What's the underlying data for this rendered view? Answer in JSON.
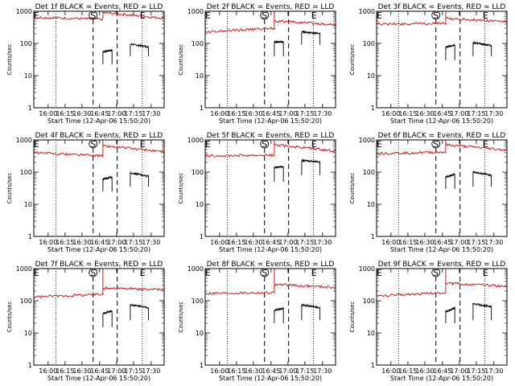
{
  "chart_data": [
    {
      "type": "line",
      "title": "Det 1f BLACK = Events, RED = LLD",
      "xlabel": "Start Time (12-Apr-06 15:50:20)",
      "ylabel": "Counts/sec",
      "yscale": "log",
      "ylim": [
        1,
        1000
      ],
      "y_ticks": [
        "1",
        "10",
        "100",
        "1000"
      ],
      "x_ticks": [
        "16:00",
        "16:15",
        "16:30",
        "16:45",
        "17:00",
        "17:15",
        "17:30"
      ],
      "markers": [
        "E",
        "S",
        "E"
      ],
      "grid": false,
      "series": [
        {
          "color": "#000000",
          "segments": [
            {
              "start": 60,
              "end": 53,
              "level_start": 55,
              "level_end": 62,
              "drop": 22
            },
            {
              "start": 74,
              "end": 88,
              "level_start": 95,
              "level_end": 78,
              "drop": 40
            }
          ]
        },
        {
          "color": "#d00000",
          "segments": [
            {
              "start": 0,
              "end": 53,
              "level_start": 650,
              "level_end": 560,
              "spike": 1000
            },
            {
              "start": 53,
              "end": 100,
              "level_start": 900,
              "level_end": 600
            }
          ]
        }
      ]
    },
    {
      "type": "line",
      "title": "Det 2f BLACK = Events, RED = LLD",
      "xlabel": "Start Time (12-Apr-06 15:50:20)",
      "ylabel": "Counts/sec",
      "yscale": "log",
      "ylim": [
        1,
        1000
      ],
      "y_ticks": [
        "1",
        "10",
        "100",
        "1000"
      ],
      "x_ticks": [
        "16:00",
        "16:15",
        "16:30",
        "16:45",
        "17:00",
        "17:15",
        "17:30"
      ],
      "markers": [
        "E",
        "S",
        "E"
      ],
      "grid": false,
      "series": [
        {
          "color": "#000000",
          "segments": [
            {
              "start": 60,
              "end": 53,
              "level_start": 110,
              "level_end": 115,
              "drop": 40
            },
            {
              "start": 74,
              "end": 88,
              "level_start": 230,
              "level_end": 200,
              "drop": 90
            }
          ]
        },
        {
          "color": "#d00000",
          "segments": [
            {
              "start": 0,
              "end": 53,
              "level_start": 220,
              "level_end": 300,
              "spike": 1000
            },
            {
              "start": 53,
              "end": 100,
              "level_start": 500,
              "level_end": 380
            }
          ]
        }
      ]
    },
    {
      "type": "line",
      "title": "Det 3f BLACK = Events, RED = LLD",
      "xlabel": "Start Time (12-Apr-06 15:50:20)",
      "ylabel": "Counts/sec",
      "yscale": "log",
      "ylim": [
        1,
        1000
      ],
      "y_ticks": [
        "1",
        "10",
        "100",
        "1000"
      ],
      "x_ticks": [
        "16:00",
        "16:15",
        "16:30",
        "16:45",
        "17:00",
        "17:15",
        "17:30"
      ],
      "markers": [
        "E",
        "S",
        "E"
      ],
      "grid": false,
      "series": [
        {
          "color": "#000000",
          "segments": [
            {
              "start": 60,
              "end": 53,
              "level_start": 75,
              "level_end": 90,
              "drop": 30
            },
            {
              "start": 74,
              "end": 88,
              "level_start": 105,
              "level_end": 85,
              "drop": 40
            }
          ]
        },
        {
          "color": "#d00000",
          "segments": [
            {
              "start": 0,
              "end": 53,
              "level_start": 400,
              "level_end": 420,
              "spike": 1000
            },
            {
              "start": 53,
              "end": 100,
              "level_start": 600,
              "level_end": 480
            }
          ]
        }
      ]
    },
    {
      "type": "line",
      "title": "Det 4f BLACK = Events, RED = LLD",
      "xlabel": "Start Time (12-Apr-06 15:50:20)",
      "ylabel": "Counts/sec",
      "yscale": "log",
      "ylim": [
        1,
        1000
      ],
      "y_ticks": [
        "1",
        "10",
        "100",
        "1000"
      ],
      "x_ticks": [
        "16:00",
        "16:15",
        "16:30",
        "16:45",
        "17:00",
        "17:15",
        "17:30"
      ],
      "markers": [
        "E",
        "S",
        "E"
      ],
      "grid": false,
      "series": [
        {
          "color": "#000000",
          "segments": [
            {
              "start": 60,
              "end": 53,
              "level_start": 60,
              "level_end": 70,
              "drop": 25
            },
            {
              "start": 74,
              "end": 88,
              "level_start": 95,
              "level_end": 75,
              "drop": 35
            }
          ]
        },
        {
          "color": "#d00000",
          "segments": [
            {
              "start": 0,
              "end": 53,
              "level_start": 400,
              "level_end": 320,
              "spike": 1000
            },
            {
              "start": 53,
              "end": 100,
              "level_start": 650,
              "level_end": 420
            }
          ]
        }
      ]
    },
    {
      "type": "line",
      "title": "Det 5f BLACK = Events, RED = LLD",
      "xlabel": "Start Time (12-Apr-06 15:50:20)",
      "ylabel": "Counts/sec",
      "yscale": "log",
      "ylim": [
        1,
        1000
      ],
      "y_ticks": [
        "1",
        "10",
        "100",
        "1000"
      ],
      "x_ticks": [
        "16:00",
        "16:15",
        "16:30",
        "16:45",
        "17:00",
        "17:15",
        "17:30"
      ],
      "markers": [
        "E",
        "S",
        "E"
      ],
      "grid": false,
      "series": [
        {
          "color": "#000000",
          "segments": [
            {
              "start": 60,
              "end": 53,
              "level_start": 140,
              "level_end": 150,
              "drop": 50
            },
            {
              "start": 74,
              "end": 88,
              "level_start": 230,
              "level_end": 210,
              "drop": 80
            }
          ]
        },
        {
          "color": "#d00000",
          "segments": [
            {
              "start": 0,
              "end": 53,
              "level_start": 320,
              "level_end": 340,
              "spike": 1000
            },
            {
              "start": 53,
              "end": 100,
              "level_start": 700,
              "level_end": 450
            }
          ]
        }
      ]
    },
    {
      "type": "line",
      "title": "Det 6f BLACK = Events, RED = LLD",
      "xlabel": "Start Time (12-Apr-06 15:50:20)",
      "ylabel": "Counts/sec",
      "yscale": "log",
      "ylim": [
        1,
        1000
      ],
      "y_ticks": [
        "1",
        "10",
        "100",
        "1000"
      ],
      "x_ticks": [
        "16:00",
        "16:15",
        "16:30",
        "16:45",
        "17:00",
        "17:15",
        "17:30"
      ],
      "markers": [
        "E",
        "S",
        "E"
      ],
      "grid": false,
      "series": [
        {
          "color": "#000000",
          "segments": [
            {
              "start": 60,
              "end": 53,
              "level_start": 70,
              "level_end": 85,
              "drop": 30
            },
            {
              "start": 74,
              "end": 88,
              "level_start": 100,
              "level_end": 80,
              "drop": 35
            }
          ]
        },
        {
          "color": "#d00000",
          "segments": [
            {
              "start": 0,
              "end": 53,
              "level_start": 380,
              "level_end": 420,
              "spike": 1000
            },
            {
              "start": 53,
              "end": 100,
              "level_start": 700,
              "level_end": 480
            }
          ]
        }
      ]
    },
    {
      "type": "line",
      "title": "Det 7f BLACK = Events, RED = LLD",
      "xlabel": "Start Time (12-Apr-06 15:50:20)",
      "ylabel": "Counts/sec",
      "yscale": "log",
      "ylim": [
        1,
        1000
      ],
      "y_ticks": [
        "1",
        "10",
        "100",
        "1000"
      ],
      "x_ticks": [
        "16:00",
        "16:15",
        "16:30",
        "16:45",
        "17:00",
        "17:15",
        "17:30"
      ],
      "markers": [
        "E",
        "S",
        "E"
      ],
      "grid": false,
      "series": [
        {
          "color": "#000000",
          "segments": [
            {
              "start": 60,
              "end": 53,
              "level_start": 40,
              "level_end": 48,
              "drop": 15
            },
            {
              "start": 74,
              "end": 88,
              "level_start": 75,
              "level_end": 60,
              "drop": 25
            }
          ]
        },
        {
          "color": "#d00000",
          "segments": [
            {
              "start": 0,
              "end": 53,
              "level_start": 130,
              "level_end": 160,
              "spike": 1000
            },
            {
              "start": 53,
              "end": 100,
              "level_start": 250,
              "level_end": 220
            }
          ]
        }
      ]
    },
    {
      "type": "line",
      "title": "Det 8f BLACK = Events, RED = LLD",
      "xlabel": "Start Time (12-Apr-06 15:50:20)",
      "ylabel": "Counts/sec",
      "yscale": "log",
      "ylim": [
        1,
        1000
      ],
      "y_ticks": [
        "1",
        "10",
        "100",
        "1000"
      ],
      "x_ticks": [
        "16:00",
        "16:15",
        "16:30",
        "16:45",
        "17:00",
        "17:15",
        "17:30"
      ],
      "markers": [
        "E",
        "S",
        "E"
      ],
      "grid": false,
      "series": [
        {
          "color": "#000000",
          "segments": [
            {
              "start": 60,
              "end": 53,
              "level_start": 50,
              "level_end": 58,
              "drop": 20
            },
            {
              "start": 74,
              "end": 88,
              "level_start": 75,
              "level_end": 60,
              "drop": 25
            }
          ]
        },
        {
          "color": "#d00000",
          "segments": [
            {
              "start": 0,
              "end": 53,
              "level_start": 170,
              "level_end": 180,
              "spike": 1000
            },
            {
              "start": 53,
              "end": 100,
              "level_start": 320,
              "level_end": 260
            }
          ]
        }
      ]
    },
    {
      "type": "line",
      "title": "Det 9f BLACK = Events, RED = LLD",
      "xlabel": "Start Time (12-Apr-06 15:50:20)",
      "ylabel": "Counts/sec",
      "yscale": "log",
      "ylim": [
        1,
        1000
      ],
      "y_ticks": [
        "1",
        "10",
        "100",
        "1000"
      ],
      "x_ticks": [
        "16:00",
        "16:15",
        "16:30",
        "16:45",
        "17:00",
        "17:15",
        "17:30"
      ],
      "markers": [
        "E",
        "S",
        "E"
      ],
      "grid": false,
      "series": [
        {
          "color": "#000000",
          "segments": [
            {
              "start": 60,
              "end": 53,
              "level_start": 45,
              "level_end": 60,
              "drop": 20
            },
            {
              "start": 74,
              "end": 88,
              "level_start": 80,
              "level_end": 65,
              "drop": 25
            }
          ]
        },
        {
          "color": "#d00000",
          "segments": [
            {
              "start": 0,
              "end": 53,
              "level_start": 140,
              "level_end": 180,
              "spike": 1000
            },
            {
              "start": 53,
              "end": 100,
              "level_start": 350,
              "level_end": 280
            }
          ]
        }
      ]
    }
  ]
}
